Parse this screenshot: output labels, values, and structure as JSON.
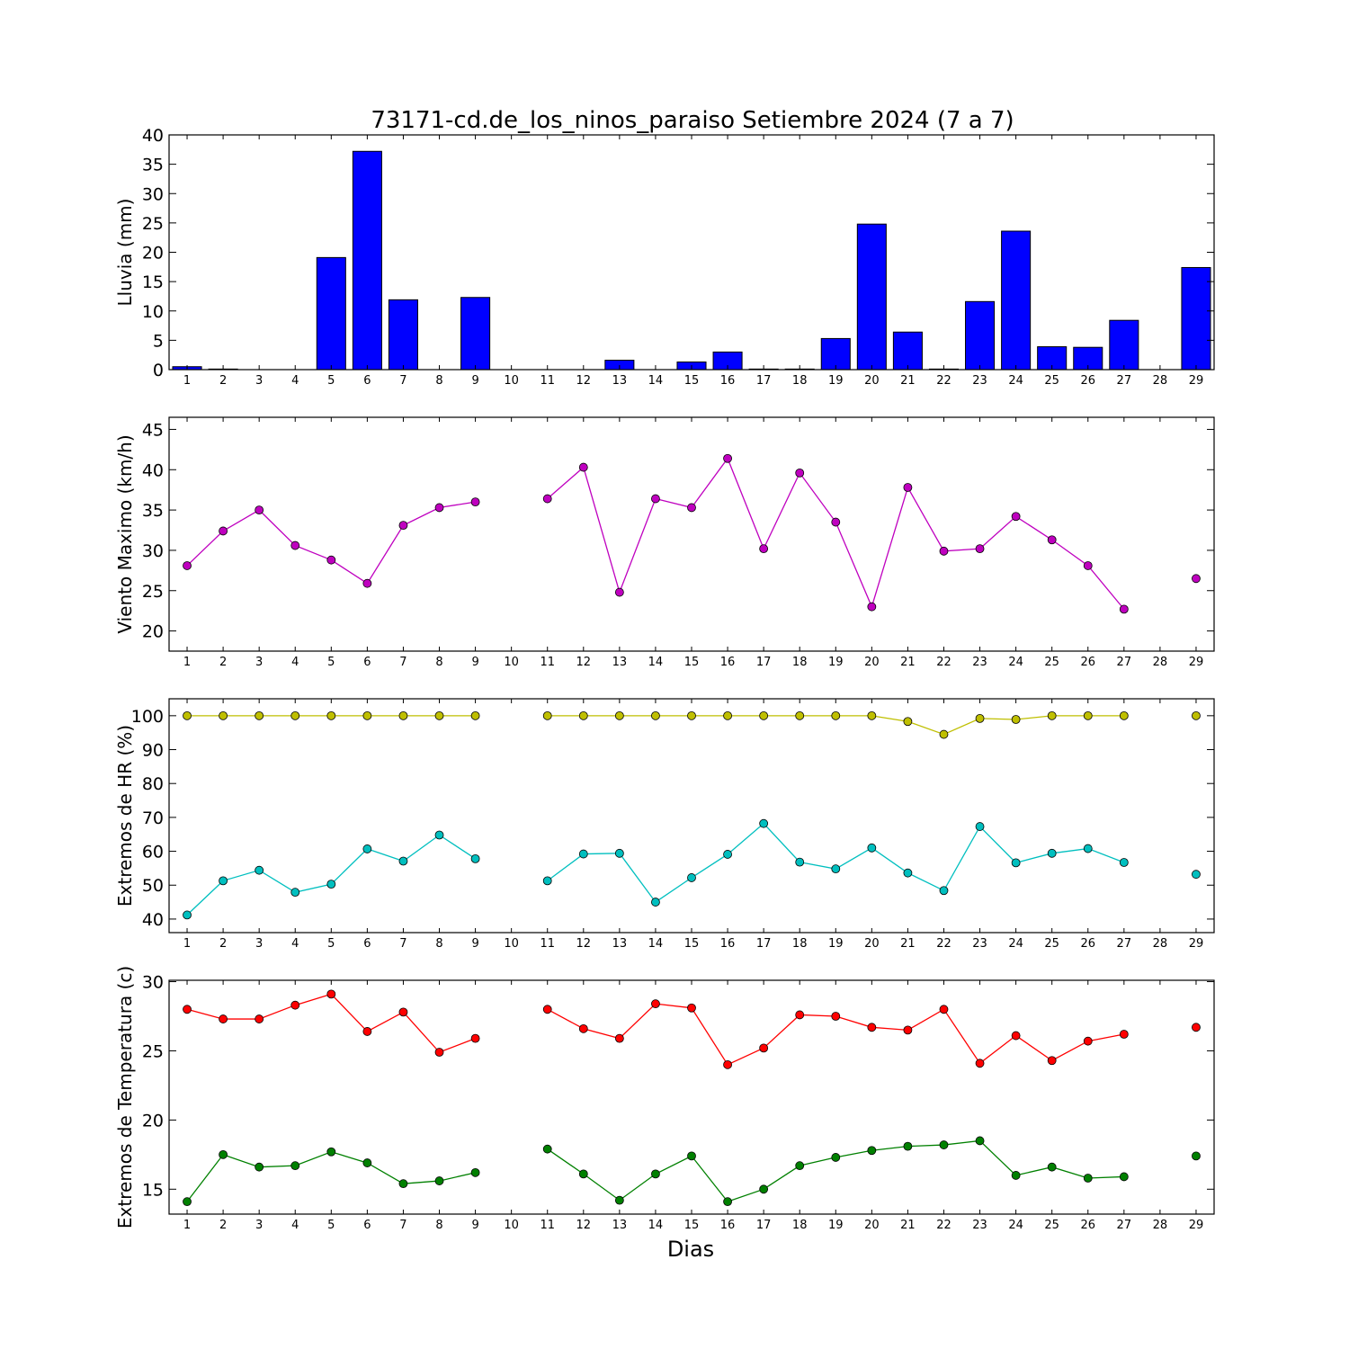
{
  "title": "73171-cd.de_los_ninos_paraiso Setiembre 2024  (7 a 7)",
  "xlabel": "Dias",
  "chart_data": [
    {
      "type": "bar",
      "ylabel": "Lluvia (mm)",
      "ylim": [
        0,
        40
      ],
      "yticks": [
        0,
        5,
        10,
        15,
        20,
        25,
        30,
        35,
        40
      ],
      "x": [
        1,
        2,
        3,
        4,
        5,
        6,
        7,
        8,
        9,
        10,
        11,
        12,
        13,
        14,
        15,
        16,
        17,
        18,
        19,
        20,
        21,
        22,
        23,
        24,
        25,
        26,
        27,
        28,
        29
      ],
      "xticks": [
        1,
        2,
        3,
        4,
        5,
        6,
        7,
        8,
        9,
        10,
        11,
        12,
        13,
        14,
        15,
        16,
        17,
        18,
        19,
        20,
        21,
        22,
        23,
        24,
        25,
        26,
        27,
        28,
        29
      ],
      "series": [
        {
          "color": "#0000ff",
          "values": [
            0.5,
            0.1,
            0,
            0,
            19.1,
            37.2,
            11.9,
            0,
            12.3,
            0,
            0,
            0,
            1.6,
            0,
            1.3,
            3.0,
            0.1,
            0.1,
            5.3,
            24.8,
            6.4,
            0.1,
            11.6,
            23.6,
            3.9,
            3.8,
            8.4,
            0,
            17.4
          ]
        }
      ]
    },
    {
      "type": "line",
      "ylabel": "Viento Maximo (km/h)",
      "ylim": [
        17.5,
        46.5
      ],
      "yticks": [
        20,
        25,
        30,
        35,
        40,
        45
      ],
      "x": [
        1,
        2,
        3,
        4,
        5,
        6,
        7,
        8,
        9,
        10,
        11,
        12,
        13,
        14,
        15,
        16,
        17,
        18,
        19,
        20,
        21,
        22,
        23,
        24,
        25,
        26,
        27,
        28,
        29
      ],
      "xticks": [
        1,
        2,
        3,
        4,
        5,
        6,
        7,
        8,
        9,
        10,
        11,
        12,
        13,
        14,
        15,
        16,
        17,
        18,
        19,
        20,
        21,
        22,
        23,
        24,
        25,
        26,
        27,
        28,
        29
      ],
      "series": [
        {
          "color": "#bf00bf",
          "values": [
            28.1,
            32.4,
            35.0,
            30.6,
            28.8,
            25.9,
            33.1,
            35.3,
            36.0,
            null,
            36.4,
            40.3,
            24.8,
            36.4,
            35.3,
            41.4,
            30.2,
            39.6,
            33.5,
            23.0,
            37.8,
            29.9,
            30.2,
            34.2,
            31.3,
            28.1,
            22.7,
            null,
            26.5
          ]
        }
      ]
    },
    {
      "type": "line",
      "ylabel": "Extremos de HR (%)",
      "ylim": [
        36,
        105
      ],
      "yticks": [
        40,
        50,
        60,
        70,
        80,
        90,
        100
      ],
      "x": [
        1,
        2,
        3,
        4,
        5,
        6,
        7,
        8,
        9,
        10,
        11,
        12,
        13,
        14,
        15,
        16,
        17,
        18,
        19,
        20,
        21,
        22,
        23,
        24,
        25,
        26,
        27,
        28,
        29
      ],
      "xticks": [
        1,
        2,
        3,
        4,
        5,
        6,
        7,
        8,
        9,
        10,
        11,
        12,
        13,
        14,
        15,
        16,
        17,
        18,
        19,
        20,
        21,
        22,
        23,
        24,
        25,
        26,
        27,
        28,
        29
      ],
      "series": [
        {
          "color": "#bfbf00",
          "values": [
            100,
            100,
            100,
            100,
            100,
            100,
            100,
            100,
            100,
            null,
            100,
            100,
            100,
            100,
            100,
            100,
            100,
            100,
            100,
            100,
            98.3,
            94.5,
            99.2,
            98.9,
            100,
            100,
            100,
            null,
            100
          ]
        },
        {
          "color": "#00bfbf",
          "values": [
            41.2,
            51.3,
            54.4,
            47.9,
            50.3,
            60.7,
            57.1,
            64.8,
            57.8,
            null,
            51.3,
            59.2,
            59.4,
            45.0,
            52.2,
            59.1,
            68.2,
            56.8,
            54.8,
            61.0,
            53.6,
            48.4,
            67.3,
            56.6,
            59.4,
            60.8,
            56.7,
            null,
            53.2
          ]
        }
      ]
    },
    {
      "type": "line",
      "ylabel": "Extremos de Temperatura (c)",
      "ylim": [
        13.2,
        30.1
      ],
      "yticks": [
        15,
        20,
        25,
        30
      ],
      "x": [
        1,
        2,
        3,
        4,
        5,
        6,
        7,
        8,
        9,
        10,
        11,
        12,
        13,
        14,
        15,
        16,
        17,
        18,
        19,
        20,
        21,
        22,
        23,
        24,
        25,
        26,
        27,
        28,
        29
      ],
      "xticks": [
        1,
        2,
        3,
        4,
        5,
        6,
        7,
        8,
        9,
        10,
        11,
        12,
        13,
        14,
        15,
        16,
        17,
        18,
        19,
        20,
        21,
        22,
        23,
        24,
        25,
        26,
        27,
        28,
        29
      ],
      "series": [
        {
          "color": "#ff0000",
          "values": [
            28.0,
            27.3,
            27.3,
            28.3,
            29.1,
            26.4,
            27.8,
            24.9,
            25.9,
            null,
            28.0,
            26.6,
            25.9,
            28.4,
            28.1,
            24.0,
            25.2,
            27.6,
            27.5,
            26.7,
            26.5,
            28.0,
            24.1,
            26.1,
            24.3,
            25.7,
            26.2,
            null,
            26.7
          ]
        },
        {
          "color": "#008000",
          "values": [
            14.1,
            17.5,
            16.6,
            16.7,
            17.7,
            16.9,
            15.4,
            15.6,
            16.2,
            null,
            17.9,
            16.1,
            14.2,
            16.1,
            17.4,
            14.1,
            15.0,
            16.7,
            17.3,
            17.8,
            18.1,
            18.2,
            18.5,
            16.0,
            16.6,
            15.8,
            15.9,
            null,
            17.4
          ]
        }
      ]
    }
  ]
}
